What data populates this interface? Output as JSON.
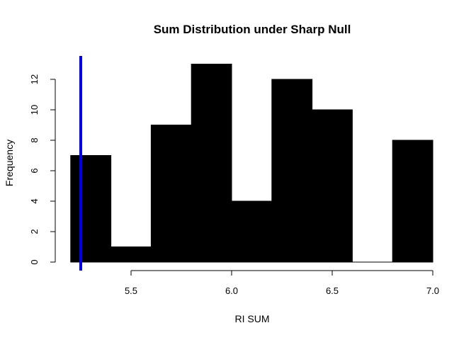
{
  "chart_data": {
    "type": "bar",
    "subtype": "histogram",
    "title": "Sum Distribution under Sharp Null",
    "xlabel": "RI SUM",
    "ylabel": "Frequency",
    "bins": [
      {
        "start": 5.2,
        "end": 5.4,
        "count": 7
      },
      {
        "start": 5.4,
        "end": 5.6,
        "count": 1
      },
      {
        "start": 5.6,
        "end": 5.8,
        "count": 9
      },
      {
        "start": 5.8,
        "end": 6.0,
        "count": 13
      },
      {
        "start": 6.0,
        "end": 6.2,
        "count": 4
      },
      {
        "start": 6.2,
        "end": 6.4,
        "count": 12
      },
      {
        "start": 6.4,
        "end": 6.6,
        "count": 10
      },
      {
        "start": 6.6,
        "end": 6.8,
        "count": 0
      },
      {
        "start": 6.8,
        "end": 7.0,
        "count": 8
      }
    ],
    "xlim": [
      5.2,
      7.0
    ],
    "ylim": [
      0,
      13
    ],
    "x_ticks": [
      5.5,
      6.0,
      6.5,
      7.0
    ],
    "x_tick_labels": [
      "5.5",
      "6.0",
      "6.5",
      "7.0"
    ],
    "y_ticks": [
      0,
      2,
      4,
      6,
      8,
      10,
      12
    ],
    "y_tick_labels": [
      "0",
      "2",
      "4",
      "6",
      "8",
      "10",
      "12"
    ],
    "reference_line": {
      "x": 5.25,
      "color": "#0000ee"
    },
    "bar_color": "#000000",
    "grid": false,
    "legend": "none"
  }
}
